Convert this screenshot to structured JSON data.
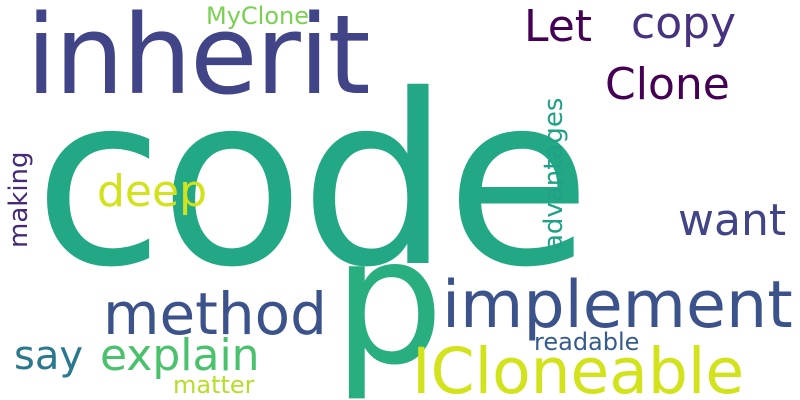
{
  "words": {
    "code": {
      "text": "code",
      "color": "#22a884"
    },
    "inherit": {
      "text": "inherit",
      "color": "#414487"
    },
    "p": {
      "text": "p",
      "color": "#29af7f"
    },
    "icloneable": {
      "text": "ICloneable",
      "color": "#d2e21b"
    },
    "implement": {
      "text": "implement",
      "color": "#3b528b"
    },
    "method": {
      "text": "method",
      "color": "#3b528b"
    },
    "explain": {
      "text": "explain",
      "color": "#4ac16d"
    },
    "say": {
      "text": "say",
      "color": "#2a788e"
    },
    "let": {
      "text": "Let",
      "color": "#440154"
    },
    "copy": {
      "text": "copy",
      "color": "#46327e"
    },
    "clone": {
      "text": "Clone",
      "color": "#440154"
    },
    "want": {
      "text": "want",
      "color": "#414487"
    },
    "deep": {
      "text": "deep",
      "color": "#d2e21b"
    },
    "myclone": {
      "text": "MyClone",
      "color": "#7ad151"
    },
    "advantages": {
      "text": "advantages",
      "color": "#1fa187"
    },
    "making": {
      "text": "making",
      "color": "#482878"
    },
    "readable": {
      "text": "readable",
      "color": "#365c8d"
    },
    "matter": {
      "text": "matter",
      "color": "#b5de2b"
    }
  }
}
